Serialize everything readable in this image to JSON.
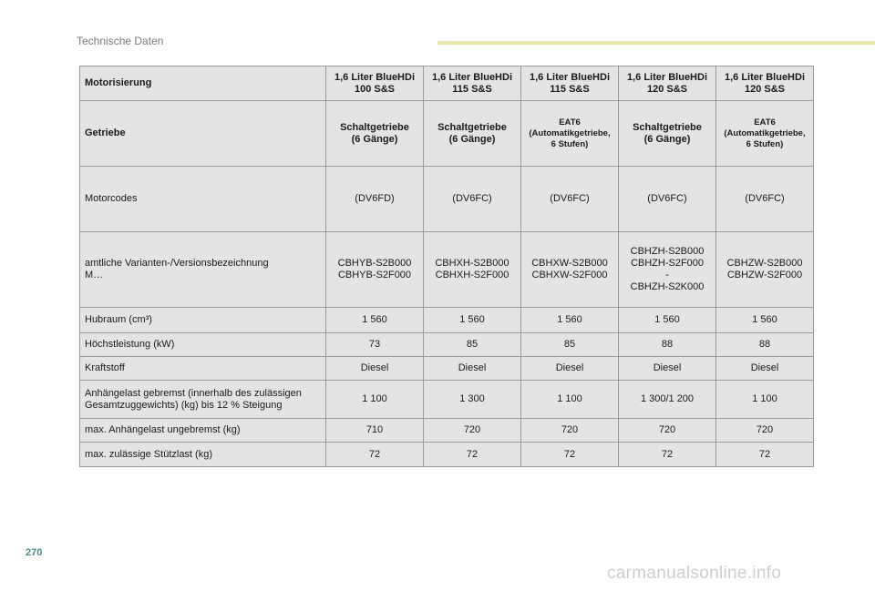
{
  "header": {
    "section_title": "Technische Daten"
  },
  "footer": {
    "page_number": "270",
    "watermark": "carmanualsonline.info"
  },
  "table": {
    "header": {
      "label": "Motorisierung",
      "columns": [
        "1,6 Liter BlueHDi\n100 S&S",
        "1,6 Liter BlueHDi\n115 S&S",
        "1,6 Liter BlueHDi\n115 S&S",
        "1,6 Liter BlueHDi\n120 S&S",
        "1,6 Liter BlueHDi\n120 S&S"
      ]
    },
    "getriebe": {
      "label": "Getriebe",
      "c1": "Schaltgetriebe\n(6 Gänge)",
      "c2": "Schaltgetriebe\n(6 Gänge)",
      "c3": "EAT6\n(Automatikgetriebe,\n6 Stufen)",
      "c4": "Schaltgetriebe\n(6 Gänge)",
      "c5": "EAT6\n(Automatikgetriebe,\n6 Stufen)"
    },
    "rows": [
      {
        "label": "Motorcodes",
        "values": [
          "(DV6FD)",
          "(DV6FC)",
          "(DV6FC)",
          "(DV6FC)",
          "(DV6FC)"
        ]
      },
      {
        "label": "amtliche Varianten-/Versionsbezeichnung\nM…",
        "values": [
          "CBHYB-S2B000\nCBHYB-S2F000",
          "CBHXH-S2B000\nCBHXH-S2F000",
          "CBHXW-S2B000\nCBHXW-S2F000",
          "CBHZH-S2B000\nCBHZH-S2F000\n-\nCBHZH-S2K000",
          "CBHZW-S2B000\nCBHZW-S2F000"
        ]
      },
      {
        "label": "Hubraum (cm³)",
        "values": [
          "1 560",
          "1 560",
          "1 560",
          "1 560",
          "1 560"
        ]
      },
      {
        "label": "Höchstleistung (kW)",
        "values": [
          "73",
          "85",
          "85",
          "88",
          "88"
        ]
      },
      {
        "label": "Kraftstoff",
        "values": [
          "Diesel",
          "Diesel",
          "Diesel",
          "Diesel",
          "Diesel"
        ]
      },
      {
        "label": "Anhängelast gebremst (innerhalb des zulässigen\nGesamtzuggewichts) (kg) bis 12 % Steigung",
        "values": [
          "1 100",
          "1 300",
          "1 100",
          "1 300/1 200",
          "1 100"
        ]
      },
      {
        "label": "max. Anhängelast ungebremst (kg)",
        "values": [
          "710",
          "720",
          "720",
          "720",
          "720"
        ]
      },
      {
        "label": "max. zulässige Stützlast (kg)",
        "values": [
          "72",
          "72",
          "72",
          "72",
          "72"
        ]
      }
    ]
  }
}
